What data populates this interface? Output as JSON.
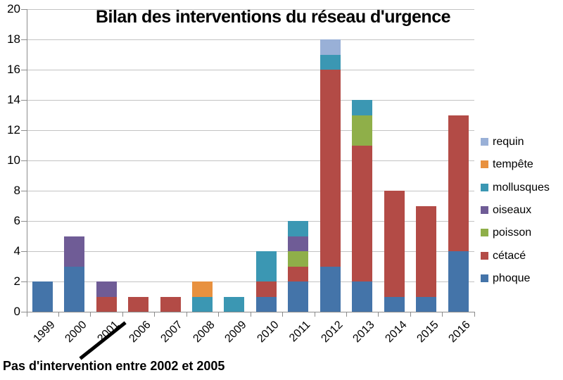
{
  "chart_data": {
    "type": "bar",
    "stacked": true,
    "title": "Bilan des interventions du réseau d'urgence",
    "categories": [
      "1999",
      "2000",
      "2001",
      "2006",
      "2007",
      "2008",
      "2009",
      "2010",
      "2011",
      "2012",
      "2013",
      "2014",
      "2015",
      "2016"
    ],
    "series": [
      {
        "name": "phoque",
        "color": "#4474A9",
        "values": [
          2,
          3,
          0,
          0,
          0,
          0,
          0,
          1,
          2,
          3,
          2,
          1,
          1,
          4
        ]
      },
      {
        "name": "cétacé",
        "color": "#B34B46",
        "values": [
          0,
          0,
          1,
          1,
          1,
          0,
          0,
          1,
          1,
          13,
          9,
          7,
          6,
          9
        ]
      },
      {
        "name": "poisson",
        "color": "#8FAF49",
        "values": [
          0,
          0,
          0,
          0,
          0,
          0,
          0,
          0,
          1,
          0,
          2,
          0,
          0,
          0
        ]
      },
      {
        "name": "oiseaux",
        "color": "#6F5C96",
        "values": [
          0,
          2,
          1,
          0,
          0,
          0,
          0,
          0,
          1,
          0,
          0,
          0,
          0,
          0
        ]
      },
      {
        "name": "mollusques",
        "color": "#3B97B3",
        "values": [
          0,
          0,
          0,
          0,
          0,
          1,
          1,
          2,
          1,
          1,
          1,
          0,
          0,
          0
        ]
      },
      {
        "name": "tempête",
        "color": "#E8913F",
        "values": [
          0,
          0,
          0,
          0,
          0,
          1,
          0,
          0,
          0,
          0,
          0,
          0,
          0,
          0
        ]
      },
      {
        "name": "requin",
        "color": "#99B0D7",
        "values": [
          0,
          0,
          0,
          0,
          0,
          0,
          0,
          0,
          0,
          1,
          0,
          0,
          0,
          0
        ]
      }
    ],
    "totals": [
      2,
      5,
      2,
      1,
      1,
      2,
      1,
      4,
      6,
      18,
      14,
      8,
      7,
      13
    ],
    "ylim": [
      0,
      20
    ],
    "ytick_step": 2,
    "grid": true,
    "legend_position": "right",
    "legend_order_top_to_bottom": [
      "requin",
      "tempête",
      "mollusques",
      "oiseaux",
      "poisson",
      "cétacé",
      "phoque"
    ],
    "annotation": "Pas d'intervention entre 2002 et 2005",
    "xlabel": "",
    "ylabel": ""
  }
}
